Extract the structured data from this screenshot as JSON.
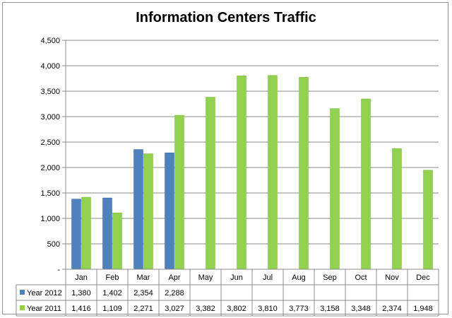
{
  "chart_data": {
    "type": "bar",
    "title": "Information Centers Traffic",
    "categories": [
      "Jan",
      "Feb",
      "Mar",
      "Apr",
      "May",
      "Jun",
      "Jul",
      "Aug",
      "Sep",
      "Oct",
      "Nov",
      "Dec"
    ],
    "series": [
      {
        "name": "Year 2012",
        "color": "#4f81bd",
        "values": [
          1380,
          1402,
          2354,
          2288,
          null,
          null,
          null,
          null,
          null,
          null,
          null,
          null
        ],
        "labels": [
          "1,380",
          "1,402",
          "2,354",
          "2,288",
          "",
          "",
          "",
          "",
          "",
          "",
          "",
          ""
        ]
      },
      {
        "name": "Year 2011",
        "color": "#92d050",
        "values": [
          1416,
          1109,
          2271,
          3027,
          3382,
          3802,
          3810,
          3773,
          3158,
          3348,
          2374,
          1948
        ],
        "labels": [
          "1,416",
          "1,109",
          "2,271",
          "3,027",
          "3,382",
          "3,802",
          "3,810",
          "3,773",
          "3,158",
          "3,348",
          "2,374",
          "1,948"
        ]
      }
    ],
    "ylim": [
      0,
      4500
    ],
    "yticks": [
      0,
      500,
      1000,
      1500,
      2000,
      2500,
      3000,
      3500,
      4000,
      4500
    ],
    "ytick_labels": [
      "-",
      "500",
      "1,000",
      "1,500",
      "2,000",
      "2,500",
      "3,000",
      "3,500",
      "4,000",
      "4,500"
    ],
    "grid": true,
    "legend": "data-table-left"
  }
}
